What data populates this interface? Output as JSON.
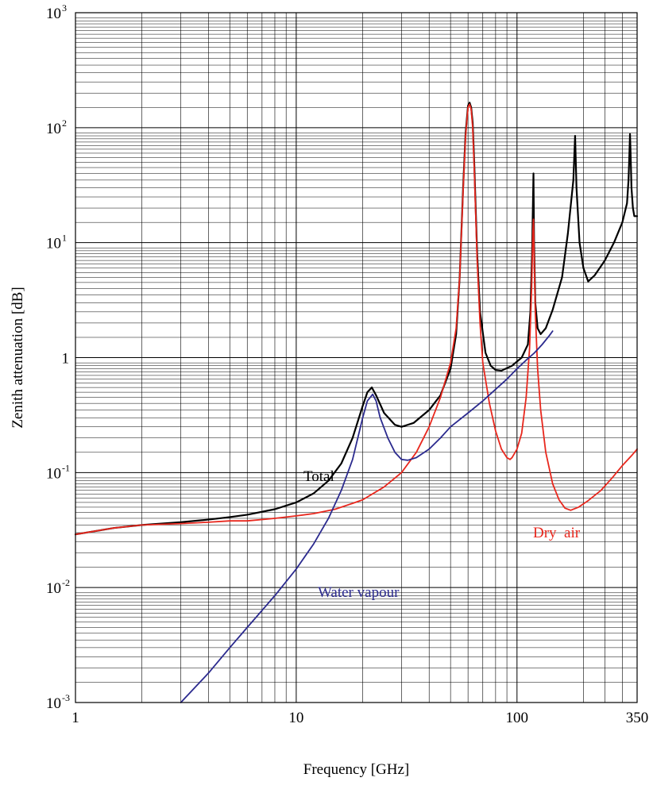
{
  "chart_data": {
    "type": "line",
    "xlabel": "Frequency [GHz]",
    "ylabel": "Zenith attenuation [dB]",
    "x_scale": "log",
    "y_scale": "log",
    "xlim": [
      1,
      350
    ],
    "ylim": [
      0.001,
      1000
    ],
    "grid": true,
    "x_tick_labels": [
      {
        "value": 1,
        "label": "1"
      },
      {
        "value": 10,
        "label": "10"
      },
      {
        "value": 100,
        "label": "100"
      },
      {
        "value": 350,
        "label": "350"
      }
    ],
    "y_tick_labels": [
      {
        "value": 0.001,
        "base": "10",
        "exp": "-3"
      },
      {
        "value": 0.01,
        "base": "10",
        "exp": "-2"
      },
      {
        "value": 0.1,
        "base": "10",
        "exp": "-1"
      },
      {
        "value": 1,
        "base": "1",
        "exp": ""
      },
      {
        "value": 10,
        "base": "10",
        "exp": "1"
      },
      {
        "value": 100,
        "base": "10",
        "exp": "2"
      },
      {
        "value": 1000,
        "base": "10",
        "exp": "3"
      }
    ],
    "series": [
      {
        "name": "Total",
        "color": "#000000",
        "points": [
          [
            1,
            0.029
          ],
          [
            1.5,
            0.033
          ],
          [
            2,
            0.035
          ],
          [
            3,
            0.037
          ],
          [
            4,
            0.039
          ],
          [
            5,
            0.041
          ],
          [
            6,
            0.043
          ],
          [
            8,
            0.048
          ],
          [
            10,
            0.055
          ],
          [
            12,
            0.066
          ],
          [
            14,
            0.085
          ],
          [
            16,
            0.12
          ],
          [
            18,
            0.2
          ],
          [
            20,
            0.38
          ],
          [
            21,
            0.5
          ],
          [
            22,
            0.55
          ],
          [
            23,
            0.47
          ],
          [
            25,
            0.33
          ],
          [
            28,
            0.26
          ],
          [
            30,
            0.25
          ],
          [
            34,
            0.27
          ],
          [
            40,
            0.35
          ],
          [
            45,
            0.47
          ],
          [
            50,
            0.8
          ],
          [
            53,
            1.6
          ],
          [
            55,
            5
          ],
          [
            57,
            30
          ],
          [
            58.5,
            90
          ],
          [
            60,
            155
          ],
          [
            61,
            165
          ],
          [
            62,
            150
          ],
          [
            63,
            110
          ],
          [
            64,
            50
          ],
          [
            66,
            8
          ],
          [
            68,
            2.5
          ],
          [
            72,
            1.1
          ],
          [
            76,
            0.85
          ],
          [
            80,
            0.78
          ],
          [
            85,
            0.77
          ],
          [
            95,
            0.85
          ],
          [
            105,
            1.0
          ],
          [
            112,
            1.3
          ],
          [
            115,
            2.5
          ],
          [
            117,
            8
          ],
          [
            118.75,
            40
          ],
          [
            119.5,
            10
          ],
          [
            121,
            3
          ],
          [
            124,
            1.8
          ],
          [
            128,
            1.6
          ],
          [
            135,
            1.8
          ],
          [
            145,
            2.6
          ],
          [
            160,
            5
          ],
          [
            170,
            12
          ],
          [
            180,
            35
          ],
          [
            183.3,
            85
          ],
          [
            186,
            30
          ],
          [
            192,
            10
          ],
          [
            200,
            6
          ],
          [
            210,
            4.6
          ],
          [
            225,
            5.2
          ],
          [
            250,
            7
          ],
          [
            275,
            10
          ],
          [
            300,
            15
          ],
          [
            315,
            22
          ],
          [
            320,
            35
          ],
          [
            323,
            60
          ],
          [
            325,
            88
          ],
          [
            327,
            60
          ],
          [
            330,
            30
          ],
          [
            335,
            20
          ],
          [
            340,
            17
          ],
          [
            350,
            17
          ]
        ]
      },
      {
        "name": "Dry  air",
        "color": "#e8271d",
        "points": [
          [
            1,
            0.029
          ],
          [
            1.5,
            0.033
          ],
          [
            2,
            0.035
          ],
          [
            3,
            0.036
          ],
          [
            4,
            0.037
          ],
          [
            5,
            0.038
          ],
          [
            6,
            0.038
          ],
          [
            8,
            0.04
          ],
          [
            10,
            0.042
          ],
          [
            12,
            0.044
          ],
          [
            15,
            0.048
          ],
          [
            18,
            0.054
          ],
          [
            20,
            0.058
          ],
          [
            25,
            0.075
          ],
          [
            30,
            0.1
          ],
          [
            35,
            0.15
          ],
          [
            40,
            0.25
          ],
          [
            45,
            0.45
          ],
          [
            50,
            0.9
          ],
          [
            53,
            1.8
          ],
          [
            55,
            5
          ],
          [
            57,
            28
          ],
          [
            58.5,
            85
          ],
          [
            60,
            150
          ],
          [
            61,
            160
          ],
          [
            62,
            145
          ],
          [
            63,
            100
          ],
          [
            64,
            45
          ],
          [
            66,
            7
          ],
          [
            68,
            2
          ],
          [
            70,
            0.9
          ],
          [
            75,
            0.4
          ],
          [
            80,
            0.23
          ],
          [
            85,
            0.16
          ],
          [
            90,
            0.135
          ],
          [
            93,
            0.13
          ],
          [
            95,
            0.135
          ],
          [
            100,
            0.16
          ],
          [
            105,
            0.22
          ],
          [
            110,
            0.45
          ],
          [
            114,
            1.2
          ],
          [
            116.5,
            4
          ],
          [
            118,
            12
          ],
          [
            118.75,
            16
          ],
          [
            119.5,
            8
          ],
          [
            121,
            2.5
          ],
          [
            124,
            0.8
          ],
          [
            128,
            0.35
          ],
          [
            135,
            0.15
          ],
          [
            145,
            0.08
          ],
          [
            155,
            0.058
          ],
          [
            165,
            0.049
          ],
          [
            175,
            0.047
          ],
          [
            190,
            0.05
          ],
          [
            210,
            0.057
          ],
          [
            240,
            0.07
          ],
          [
            270,
            0.09
          ],
          [
            300,
            0.115
          ],
          [
            330,
            0.14
          ],
          [
            350,
            0.16
          ]
        ]
      },
      {
        "name": "Water vapour",
        "color": "#2b2a8e",
        "points": [
          [
            3,
            0.001
          ],
          [
            4,
            0.0018
          ],
          [
            5,
            0.003
          ],
          [
            6,
            0.0045
          ],
          [
            8,
            0.0085
          ],
          [
            10,
            0.0145
          ],
          [
            12,
            0.024
          ],
          [
            14,
            0.04
          ],
          [
            16,
            0.07
          ],
          [
            18,
            0.13
          ],
          [
            20,
            0.3
          ],
          [
            21,
            0.42
          ],
          [
            22.2,
            0.48
          ],
          [
            23,
            0.42
          ],
          [
            24,
            0.3
          ],
          [
            26,
            0.2
          ],
          [
            28,
            0.15
          ],
          [
            30,
            0.13
          ],
          [
            32,
            0.128
          ],
          [
            35,
            0.135
          ],
          [
            40,
            0.16
          ],
          [
            45,
            0.2
          ],
          [
            50,
            0.25
          ],
          [
            60,
            0.33
          ],
          [
            70,
            0.42
          ],
          [
            80,
            0.53
          ],
          [
            90,
            0.65
          ],
          [
            100,
            0.8
          ],
          [
            110,
            0.95
          ],
          [
            120,
            1.1
          ],
          [
            130,
            1.3
          ],
          [
            140,
            1.55
          ],
          [
            145,
            1.7
          ]
        ]
      }
    ],
    "annotations": [
      {
        "text": "Total",
        "color": "#000000"
      },
      {
        "text": "Dry  air",
        "color": "#e8271d"
      },
      {
        "text": "Water vapour",
        "color": "#2b2a8e"
      }
    ]
  }
}
